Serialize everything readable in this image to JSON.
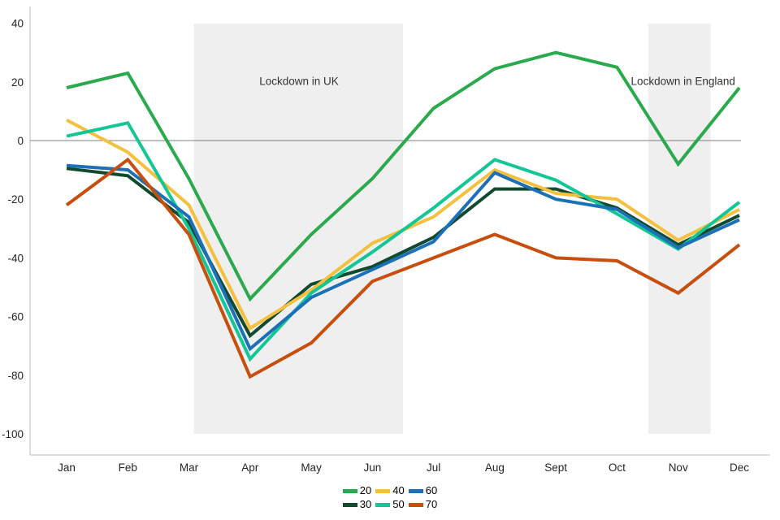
{
  "chart_data": {
    "type": "line",
    "title": "",
    "xlabel": "",
    "ylabel": "",
    "x": [
      "Jan",
      "Feb",
      "Mar",
      "Apr",
      "May",
      "Jun",
      "Jul",
      "Aug",
      "Sept",
      "Oct",
      "Nov",
      "Dec"
    ],
    "yticks": [
      40,
      20,
      0,
      -20,
      -40,
      -60,
      -80,
      -100
    ],
    "ylim": [
      -107,
      46
    ],
    "grid": false,
    "zero_line": true,
    "series": [
      {
        "name": "20",
        "color": "#2BAA4D",
        "values": [
          18,
          23,
          -13,
          -54,
          -32,
          -13,
          11,
          24.5,
          30,
          25,
          -8,
          18
        ]
      },
      {
        "name": "30",
        "color": "#124A2F",
        "values": [
          -9.5,
          -12,
          -28,
          -66.5,
          -49,
          -43,
          -33,
          -16.5,
          -16.5,
          -23,
          -35.5,
          -25.5
        ]
      },
      {
        "name": "40",
        "color": "#F4C03E",
        "values": [
          7,
          -4,
          -22,
          -64,
          -51,
          -35,
          -26,
          -10,
          -18,
          -20,
          -34,
          -23.5
        ]
      },
      {
        "name": "50",
        "color": "#12C795",
        "values": [
          1.5,
          6,
          -30,
          -74.5,
          -52,
          -38,
          -23,
          -6.5,
          -13.5,
          -25,
          -37,
          -21
        ]
      },
      {
        "name": "60",
        "color": "#1C70B8",
        "values": [
          -8.5,
          -10,
          -26,
          -71,
          -53.5,
          -44,
          -34.5,
          -11,
          -20,
          -23.5,
          -36.5,
          -27
        ]
      },
      {
        "name": "70",
        "color": "#C74E0C",
        "values": [
          -22,
          -6.5,
          -32,
          -80.5,
          -69,
          -48,
          -40,
          -32,
          -40,
          -41,
          -52,
          -35.5
        ]
      }
    ],
    "shaded_regions": [
      {
        "label": "Lockdown in UK",
        "from_index": 2.08,
        "to_index": 5.5,
        "label_x_index": 3.8,
        "label_y_value": 19
      },
      {
        "label": "Lockdown in England",
        "from_index": 9.51,
        "to_index": 10.53,
        "label_x_index": 10.08,
        "label_y_value": 19
      }
    ],
    "legend": {
      "position": "bottom-center",
      "rows": [
        [
          "20",
          "40",
          "60"
        ],
        [
          "30",
          "50",
          "70"
        ]
      ]
    },
    "colors": {
      "band": "#EFEFEF",
      "zero_line": "#7F7F7F",
      "axis": "#C9C9C9",
      "tick_text": "#262626",
      "annotation_text": "#333333"
    }
  }
}
